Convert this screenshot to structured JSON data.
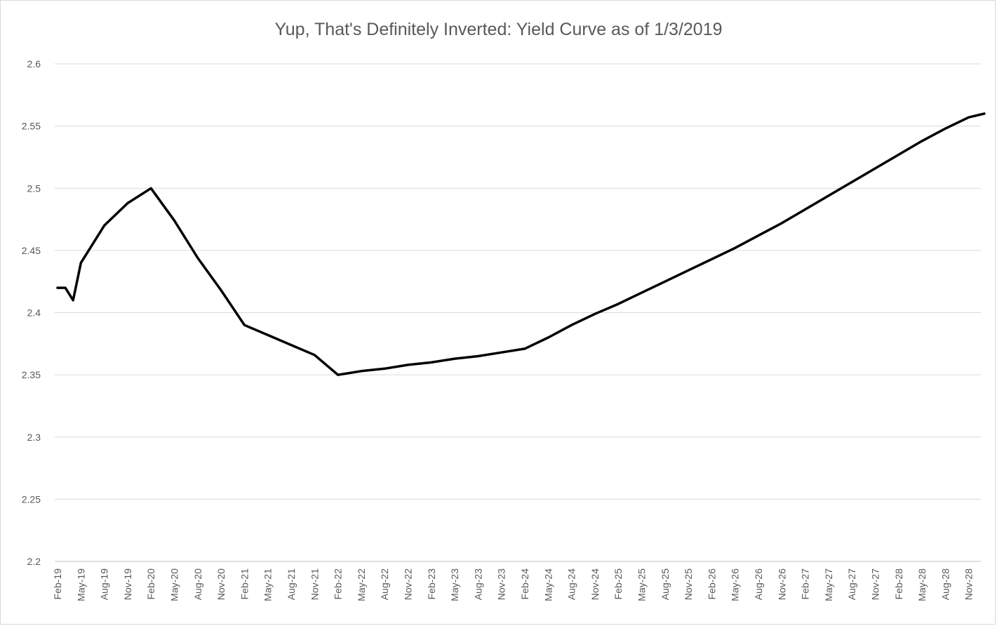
{
  "chart_data": {
    "type": "line",
    "title": "Yup, That's Definitely Inverted: Yield Curve as of 1/3/2019",
    "xlabel": "",
    "ylabel": "",
    "ylim": [
      2.2,
      2.6
    ],
    "yticks": [
      "2.2",
      "2.25",
      "2.3",
      "2.35",
      "2.4",
      "2.45",
      "2.5",
      "2.55",
      "2.6"
    ],
    "grid": true,
    "legend": "none",
    "line_color": "#000000",
    "xtick_labels": [
      "Feb-19",
      "May-19",
      "Aug-19",
      "Nov-19",
      "Feb-20",
      "May-20",
      "Aug-20",
      "Nov-20",
      "Feb-21",
      "May-21",
      "Aug-21",
      "Nov-21",
      "Feb-22",
      "May-22",
      "Aug-22",
      "Nov-22",
      "Feb-23",
      "May-23",
      "Aug-23",
      "Nov-23",
      "Feb-24",
      "May-24",
      "Aug-24",
      "Nov-24",
      "Feb-25",
      "May-25",
      "Aug-25",
      "Nov-25",
      "Feb-26",
      "May-26",
      "Aug-26",
      "Nov-26",
      "Feb-27",
      "May-27",
      "Aug-27",
      "Nov-27",
      "Feb-28",
      "May-28",
      "Aug-28",
      "Nov-28"
    ],
    "series": [
      {
        "x": [
          "Feb-19",
          "Mar-19",
          "Apr-19",
          "May-19",
          "Aug-19",
          "Nov-19",
          "Feb-20",
          "May-20",
          "Aug-20",
          "Nov-20",
          "Feb-21",
          "May-21",
          "Aug-21",
          "Nov-21",
          "Feb-22",
          "May-22",
          "Aug-22",
          "Nov-22",
          "Feb-23",
          "May-23",
          "Aug-23",
          "Nov-23",
          "Feb-24",
          "May-24",
          "Aug-24",
          "Nov-24",
          "Feb-25",
          "May-25",
          "Aug-25",
          "Nov-25",
          "Feb-26",
          "May-26",
          "Aug-26",
          "Nov-26",
          "Feb-27",
          "May-27",
          "Aug-27",
          "Nov-27",
          "Feb-28",
          "May-28",
          "Aug-28",
          "Nov-28",
          "Jan-29"
        ],
        "values": [
          2.42,
          2.42,
          2.41,
          2.44,
          2.47,
          2.488,
          2.5,
          2.474,
          2.444,
          2.418,
          2.39,
          2.382,
          2.374,
          2.366,
          2.35,
          2.353,
          2.355,
          2.358,
          2.36,
          2.363,
          2.365,
          2.368,
          2.371,
          2.38,
          2.39,
          2.399,
          2.407,
          2.416,
          2.425,
          2.434,
          2.443,
          2.452,
          2.462,
          2.472,
          2.483,
          2.494,
          2.505,
          2.516,
          2.527,
          2.538,
          2.548,
          2.557,
          2.56
        ]
      }
    ]
  }
}
